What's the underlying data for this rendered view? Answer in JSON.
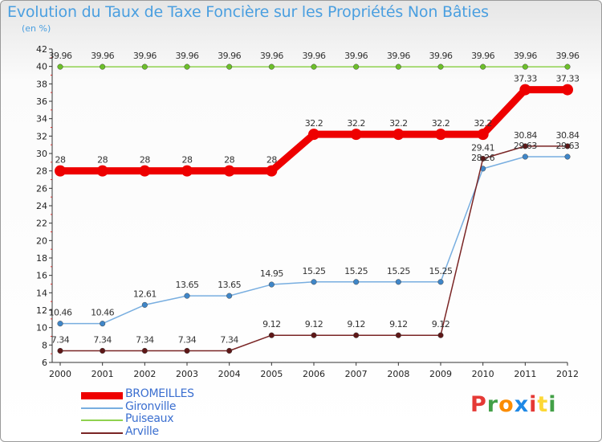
{
  "title": "Evolution du Taux de Taxe Foncière sur les Propriétés Non Bâties",
  "unit_label": "(en %)",
  "logo": {
    "text": "Proxiti",
    "letters": [
      {
        "ch": "P",
        "color": "#e53935"
      },
      {
        "ch": "r",
        "color": "#43a047"
      },
      {
        "ch": "o",
        "color": "#fb8c00"
      },
      {
        "ch": "x",
        "color": "#1e88e5"
      },
      {
        "ch": "i",
        "color": "#e53935"
      },
      {
        "ch": "t",
        "color": "#fdd835"
      },
      {
        "ch": "i",
        "color": "#43a047"
      }
    ]
  },
  "chart_data": {
    "type": "line",
    "title": "Evolution du Taux de Taxe Foncière sur les Propriétés Non Bâties",
    "ylabel": "(en %)",
    "xlabel": "",
    "x": [
      "2000",
      "2001",
      "2002",
      "2003",
      "2004",
      "2005",
      "2006",
      "2007",
      "2008",
      "2009",
      "2010",
      "2011",
      "2012"
    ],
    "ylim": [
      6,
      42
    ],
    "yticks": [
      6,
      8,
      10,
      12,
      14,
      16,
      18,
      20,
      22,
      24,
      26,
      28,
      30,
      32,
      34,
      36,
      38,
      40,
      42
    ],
    "grid": false,
    "legend_position": "bottom-left",
    "series": [
      {
        "name": "Puiseaux",
        "color": "#8fd14f",
        "marker_color": "#6cbf2a",
        "values": [
          39.96,
          39.96,
          39.96,
          39.96,
          39.96,
          39.96,
          39.96,
          39.96,
          39.96,
          39.96,
          39.96,
          39.96,
          39.96
        ],
        "labels": [
          "39.96",
          "39.96",
          "39.96",
          "39.96",
          "39.96",
          "39.96",
          "39.96",
          "39.96",
          "39.96",
          "39.96",
          "39.96",
          "39.96",
          "39.96"
        ]
      },
      {
        "name": "Gironville",
        "color": "#78aee0",
        "marker_color": "#3f86c8",
        "values": [
          10.46,
          10.46,
          12.61,
          13.65,
          13.65,
          14.95,
          15.25,
          15.25,
          15.25,
          15.25,
          28.26,
          29.63,
          29.63
        ],
        "labels": [
          "10.46",
          "10.46",
          "12.61",
          "13.65",
          "13.65",
          "14.95",
          "15.25",
          "15.25",
          "15.25",
          "15.25",
          "28.26",
          "29.63",
          "29.63"
        ]
      },
      {
        "name": "Arville",
        "color": "#7a2525",
        "marker_color": "#5e1717",
        "values": [
          7.34,
          7.34,
          7.34,
          7.34,
          7.34,
          9.12,
          9.12,
          9.12,
          9.12,
          9.12,
          29.41,
          30.84,
          30.84
        ],
        "labels": [
          "7.34",
          "7.34",
          "7.34",
          "7.34",
          "7.34",
          "9.12",
          "9.12",
          "9.12",
          "9.12",
          "9.12",
          "29.41",
          "30.84",
          "30.84"
        ]
      },
      {
        "name": "BROMEILLES",
        "color": "#ee0000",
        "marker_color": "#ee0000",
        "values": [
          28,
          28,
          28,
          28,
          28,
          28,
          32.2,
          32.2,
          32.2,
          32.2,
          32.2,
          37.33,
          37.33
        ],
        "labels": [
          "28",
          "28",
          "28",
          "28",
          "28",
          "28",
          "32.2",
          "32.2",
          "32.2",
          "32.2",
          "32.2",
          "37.33",
          "37.33"
        ]
      }
    ]
  },
  "legend": [
    {
      "name": "BROMEILLES",
      "color": "#ee0000",
      "thick": true
    },
    {
      "name": "Gironville",
      "color": "#78aee0",
      "thick": false
    },
    {
      "name": "Puiseaux",
      "color": "#8fd14f",
      "thick": false
    },
    {
      "name": "Arville",
      "color": "#7a2525",
      "thick": false
    }
  ]
}
